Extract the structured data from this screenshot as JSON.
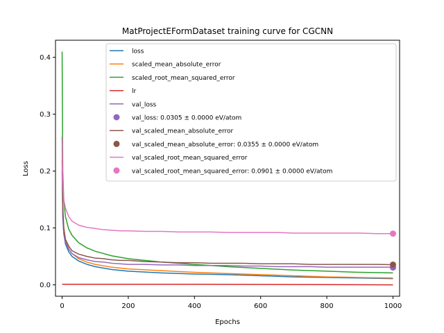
{
  "chart_data": {
    "type": "line",
    "title": "MatProjectEFormDataset training curve for CGCNN",
    "xlabel": "Epochs",
    "ylabel": "Loss",
    "xlim": [
      -20,
      1020
    ],
    "ylim": [
      -0.02,
      0.43
    ],
    "xticks": [
      0,
      200,
      400,
      600,
      800,
      1000
    ],
    "yticks": [
      0.0,
      0.1,
      0.2,
      0.3,
      0.4
    ],
    "xtick_labels": [
      "0",
      "200",
      "400",
      "600",
      "800",
      "1000"
    ],
    "ytick_labels": [
      "0.0",
      "0.1",
      "0.2",
      "0.3",
      "0.4"
    ],
    "grid": false,
    "legend_position": "top-right",
    "series": [
      {
        "name": "loss",
        "color": "#1f77b4",
        "x": [
          0,
          2,
          5,
          10,
          20,
          30,
          50,
          75,
          100,
          150,
          200,
          300,
          400,
          500,
          600,
          700,
          800,
          900,
          1000
        ],
        "y": [
          0.22,
          0.12,
          0.09,
          0.072,
          0.058,
          0.05,
          0.042,
          0.036,
          0.032,
          0.027,
          0.024,
          0.021,
          0.019,
          0.018,
          0.016,
          0.014,
          0.013,
          0.012,
          0.011
        ]
      },
      {
        "name": "scaled_mean_absolute_error",
        "color": "#ff7f0e",
        "x": [
          0,
          2,
          5,
          10,
          20,
          30,
          50,
          75,
          100,
          150,
          200,
          300,
          400,
          500,
          600,
          700,
          800,
          900,
          1000
        ],
        "y": [
          0.24,
          0.13,
          0.1,
          0.08,
          0.063,
          0.055,
          0.046,
          0.04,
          0.036,
          0.031,
          0.028,
          0.025,
          0.022,
          0.02,
          0.018,
          0.016,
          0.014,
          0.013,
          0.012
        ]
      },
      {
        "name": "scaled_root_mean_squared_error",
        "color": "#2ca02c",
        "x": [
          0,
          2,
          5,
          10,
          20,
          30,
          50,
          75,
          100,
          150,
          200,
          300,
          400,
          500,
          600,
          700,
          800,
          900,
          1000
        ],
        "y": [
          0.41,
          0.2,
          0.15,
          0.12,
          0.098,
          0.087,
          0.074,
          0.065,
          0.059,
          0.051,
          0.046,
          0.04,
          0.036,
          0.032,
          0.029,
          0.026,
          0.024,
          0.022,
          0.021
        ]
      },
      {
        "name": "lr",
        "color": "#d62728",
        "x": [
          0,
          200,
          400,
          600,
          800,
          1000
        ],
        "y": [
          0.001,
          0.001,
          0.001,
          0.0008,
          0.0005,
          0.0
        ]
      },
      {
        "name": "val_loss",
        "color": "#9467bd",
        "x": [
          0,
          2,
          5,
          10,
          20,
          30,
          50,
          75,
          100,
          125,
          150,
          175,
          200,
          250,
          300,
          350,
          400,
          450,
          500,
          550,
          600,
          650,
          700,
          750,
          800,
          850,
          900,
          950,
          1000
        ],
        "y": [
          0.2,
          0.12,
          0.09,
          0.075,
          0.063,
          0.055,
          0.048,
          0.044,
          0.041,
          0.04,
          0.038,
          0.037,
          0.036,
          0.036,
          0.035,
          0.035,
          0.034,
          0.034,
          0.034,
          0.033,
          0.033,
          0.032,
          0.032,
          0.032,
          0.031,
          0.031,
          0.031,
          0.031,
          0.031
        ]
      },
      {
        "name": "val_scaled_mean_absolute_error",
        "color": "#8c564b",
        "x": [
          0,
          2,
          5,
          10,
          20,
          30,
          50,
          75,
          100,
          125,
          150,
          175,
          200,
          250,
          300,
          350,
          400,
          450,
          500,
          550,
          600,
          650,
          700,
          750,
          800,
          850,
          900,
          950,
          1000
        ],
        "y": [
          0.26,
          0.14,
          0.1,
          0.08,
          0.068,
          0.06,
          0.054,
          0.05,
          0.047,
          0.046,
          0.044,
          0.043,
          0.043,
          0.041,
          0.04,
          0.039,
          0.039,
          0.038,
          0.038,
          0.038,
          0.037,
          0.037,
          0.037,
          0.036,
          0.036,
          0.036,
          0.036,
          0.036,
          0.0355
        ]
      },
      {
        "name": "val_scaled_root_mean_squared_error",
        "color": "#e377c2",
        "x": [
          0,
          2,
          5,
          10,
          20,
          30,
          50,
          75,
          100,
          125,
          150,
          175,
          200,
          250,
          300,
          350,
          400,
          450,
          500,
          550,
          600,
          650,
          700,
          750,
          800,
          850,
          900,
          950,
          1000
        ],
        "y": [
          0.26,
          0.18,
          0.15,
          0.135,
          0.12,
          0.112,
          0.105,
          0.101,
          0.099,
          0.097,
          0.096,
          0.095,
          0.095,
          0.094,
          0.094,
          0.093,
          0.093,
          0.093,
          0.092,
          0.092,
          0.092,
          0.092,
          0.091,
          0.091,
          0.091,
          0.091,
          0.091,
          0.09,
          0.0901
        ]
      }
    ],
    "markers": [
      {
        "name": "val_loss: 0.0305 ± 0.0000 eV/atom",
        "color": "#9467bd",
        "x": 1000,
        "y": 0.0305
      },
      {
        "name": "val_scaled_mean_absolute_error: 0.0355 ± 0.0000 eV/atom",
        "color": "#8c564b",
        "x": 1000,
        "y": 0.0355
      },
      {
        "name": "val_scaled_root_mean_squared_error: 0.0901 ± 0.0000 eV/atom",
        "color": "#e377c2",
        "x": 1000,
        "y": 0.0901
      }
    ],
    "legend_entries": [
      {
        "kind": "line",
        "label": "loss",
        "color": "#1f77b4"
      },
      {
        "kind": "line",
        "label": "scaled_mean_absolute_error",
        "color": "#ff7f0e"
      },
      {
        "kind": "line",
        "label": "scaled_root_mean_squared_error",
        "color": "#2ca02c"
      },
      {
        "kind": "line",
        "label": "lr",
        "color": "#d62728"
      },
      {
        "kind": "line",
        "label": "val_loss",
        "color": "#9467bd"
      },
      {
        "kind": "marker",
        "label": "val_loss: 0.0305 ± 0.0000 eV/atom",
        "color": "#9467bd"
      },
      {
        "kind": "line",
        "label": "val_scaled_mean_absolute_error",
        "color": "#8c564b"
      },
      {
        "kind": "marker",
        "label": "val_scaled_mean_absolute_error: 0.0355 ± 0.0000 eV/atom",
        "color": "#8c564b"
      },
      {
        "kind": "line",
        "label": "val_scaled_root_mean_squared_error",
        "color": "#e377c2"
      },
      {
        "kind": "marker",
        "label": "val_scaled_root_mean_squared_error: 0.0901 ± 0.0000 eV/atom",
        "color": "#e377c2"
      }
    ]
  }
}
